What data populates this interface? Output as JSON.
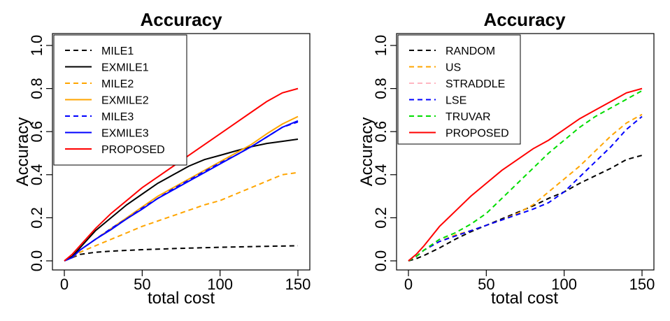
{
  "chart_data": [
    {
      "type": "line",
      "title": "Accuracy",
      "xlabel": "total cost",
      "ylabel": "Accuracy",
      "xlim": [
        0,
        150
      ],
      "ylim": [
        0,
        1.0
      ],
      "xticks": [
        0,
        50,
        100,
        150
      ],
      "yticks": [
        0.0,
        0.2,
        0.4,
        0.6,
        0.8,
        1.0
      ],
      "xtick_labels": [
        "0",
        "50",
        "100",
        "150"
      ],
      "ytick_labels": [
        "0.0",
        "0.2",
        "0.4",
        "0.6",
        "0.8",
        "1.0"
      ],
      "legend_position": "top-left",
      "series": [
        {
          "name": "MILE1",
          "color": "#000000",
          "dash": "dashed",
          "x": [
            0,
            5,
            10,
            20,
            30,
            50,
            75,
            100,
            125,
            150
          ],
          "values": [
            0.0,
            0.015,
            0.03,
            0.04,
            0.045,
            0.052,
            0.058,
            0.063,
            0.067,
            0.07
          ]
        },
        {
          "name": "EXMILE1",
          "color": "#000000",
          "dash": "solid",
          "x": [
            0,
            5,
            10,
            20,
            30,
            40,
            50,
            60,
            70,
            80,
            90,
            100,
            110,
            120,
            130,
            140,
            150
          ],
          "values": [
            0.0,
            0.02,
            0.06,
            0.14,
            0.2,
            0.26,
            0.31,
            0.36,
            0.4,
            0.44,
            0.47,
            0.49,
            0.51,
            0.53,
            0.545,
            0.555,
            0.565
          ]
        },
        {
          "name": "MILE2",
          "color": "#FFA500",
          "dash": "dashed",
          "x": [
            0,
            5,
            10,
            20,
            30,
            40,
            50,
            60,
            70,
            80,
            90,
            100,
            110,
            120,
            130,
            140,
            150
          ],
          "values": [
            0.0,
            0.015,
            0.04,
            0.07,
            0.1,
            0.13,
            0.16,
            0.185,
            0.21,
            0.235,
            0.26,
            0.28,
            0.31,
            0.34,
            0.37,
            0.4,
            0.41
          ]
        },
        {
          "name": "EXMILE2",
          "color": "#FFA500",
          "dash": "solid",
          "x": [
            0,
            5,
            10,
            20,
            30,
            40,
            50,
            60,
            70,
            80,
            90,
            100,
            110,
            120,
            130,
            140,
            150
          ],
          "values": [
            0.0,
            0.015,
            0.05,
            0.1,
            0.15,
            0.2,
            0.25,
            0.3,
            0.34,
            0.38,
            0.42,
            0.46,
            0.5,
            0.54,
            0.59,
            0.635,
            0.67
          ]
        },
        {
          "name": "MILE3",
          "color": "#0000FF",
          "dash": "dashed",
          "x": [
            0,
            5,
            10,
            20,
            30,
            40,
            50,
            60,
            70,
            80,
            90,
            100,
            110,
            120,
            130,
            140,
            150
          ],
          "values": [
            0.0,
            0.015,
            0.05,
            0.1,
            0.15,
            0.195,
            0.245,
            0.29,
            0.335,
            0.375,
            0.415,
            0.455,
            0.49,
            0.53,
            0.575,
            0.62,
            0.645
          ]
        },
        {
          "name": "EXMILE3",
          "color": "#0000FF",
          "dash": "solid",
          "x": [
            0,
            5,
            10,
            20,
            30,
            40,
            50,
            60,
            70,
            80,
            90,
            100,
            110,
            120,
            130,
            140,
            150
          ],
          "values": [
            0.0,
            0.015,
            0.05,
            0.1,
            0.145,
            0.195,
            0.24,
            0.29,
            0.33,
            0.37,
            0.41,
            0.45,
            0.49,
            0.53,
            0.575,
            0.62,
            0.65
          ]
        },
        {
          "name": "PROPOSED",
          "color": "#FF0000",
          "dash": "solid",
          "x": [
            0,
            5,
            10,
            20,
            30,
            40,
            50,
            60,
            70,
            80,
            90,
            100,
            110,
            120,
            130,
            140,
            150
          ],
          "values": [
            0.0,
            0.03,
            0.07,
            0.15,
            0.22,
            0.28,
            0.34,
            0.39,
            0.44,
            0.49,
            0.54,
            0.59,
            0.64,
            0.69,
            0.74,
            0.78,
            0.8
          ]
        }
      ]
    },
    {
      "type": "line",
      "title": "Accuracy",
      "xlabel": "total cost",
      "ylabel": "Accuracy",
      "xlim": [
        0,
        150
      ],
      "ylim": [
        0,
        1.0
      ],
      "xticks": [
        0,
        50,
        100,
        150
      ],
      "yticks": [
        0.0,
        0.2,
        0.4,
        0.6,
        0.8,
        1.0
      ],
      "xtick_labels": [
        "0",
        "50",
        "100",
        "150"
      ],
      "ytick_labels": [
        "0.0",
        "0.2",
        "0.4",
        "0.6",
        "0.8",
        "1.0"
      ],
      "legend_position": "top-left",
      "series": [
        {
          "name": "RANDOM",
          "color": "#000000",
          "dash": "dashed",
          "x": [
            0,
            5,
            10,
            20,
            30,
            40,
            50,
            60,
            70,
            80,
            90,
            100,
            110,
            120,
            130,
            140,
            150
          ],
          "values": [
            0.0,
            0.01,
            0.025,
            0.06,
            0.1,
            0.135,
            0.165,
            0.195,
            0.225,
            0.255,
            0.29,
            0.32,
            0.36,
            0.395,
            0.43,
            0.47,
            0.49
          ]
        },
        {
          "name": "US",
          "color": "#FFA500",
          "dash": "dashed",
          "x": [
            0,
            5,
            10,
            20,
            30,
            40,
            50,
            60,
            70,
            80,
            90,
            100,
            110,
            120,
            130,
            140,
            150
          ],
          "values": [
            0.0,
            0.02,
            0.05,
            0.09,
            0.12,
            0.14,
            0.165,
            0.19,
            0.22,
            0.26,
            0.32,
            0.38,
            0.44,
            0.51,
            0.58,
            0.64,
            0.68
          ]
        },
        {
          "name": "STRADDLE",
          "color": "#FFB6C1",
          "dash": "dashed",
          "x": [],
          "values": []
        },
        {
          "name": "LSE",
          "color": "#0000FF",
          "dash": "dashed",
          "x": [
            0,
            5,
            10,
            20,
            30,
            40,
            50,
            60,
            70,
            80,
            90,
            100,
            110,
            120,
            130,
            140,
            150
          ],
          "values": [
            0.0,
            0.02,
            0.05,
            0.09,
            0.115,
            0.14,
            0.165,
            0.19,
            0.215,
            0.24,
            0.27,
            0.32,
            0.39,
            0.46,
            0.53,
            0.61,
            0.67
          ]
        },
        {
          "name": "TRUVAR",
          "color": "#00DD00",
          "dash": "dashed",
          "x": [
            0,
            5,
            10,
            20,
            30,
            40,
            50,
            60,
            70,
            80,
            90,
            100,
            110,
            120,
            130,
            140,
            150
          ],
          "values": [
            0.0,
            0.02,
            0.05,
            0.1,
            0.13,
            0.17,
            0.22,
            0.29,
            0.36,
            0.43,
            0.5,
            0.56,
            0.62,
            0.67,
            0.71,
            0.75,
            0.79
          ]
        },
        {
          "name": "PROPOSED",
          "color": "#FF0000",
          "dash": "solid",
          "x": [
            0,
            5,
            10,
            20,
            30,
            40,
            50,
            60,
            70,
            80,
            90,
            100,
            110,
            120,
            130,
            140,
            150
          ],
          "values": [
            0.0,
            0.03,
            0.07,
            0.16,
            0.23,
            0.3,
            0.36,
            0.42,
            0.47,
            0.52,
            0.56,
            0.61,
            0.66,
            0.7,
            0.74,
            0.78,
            0.8
          ]
        }
      ]
    }
  ]
}
